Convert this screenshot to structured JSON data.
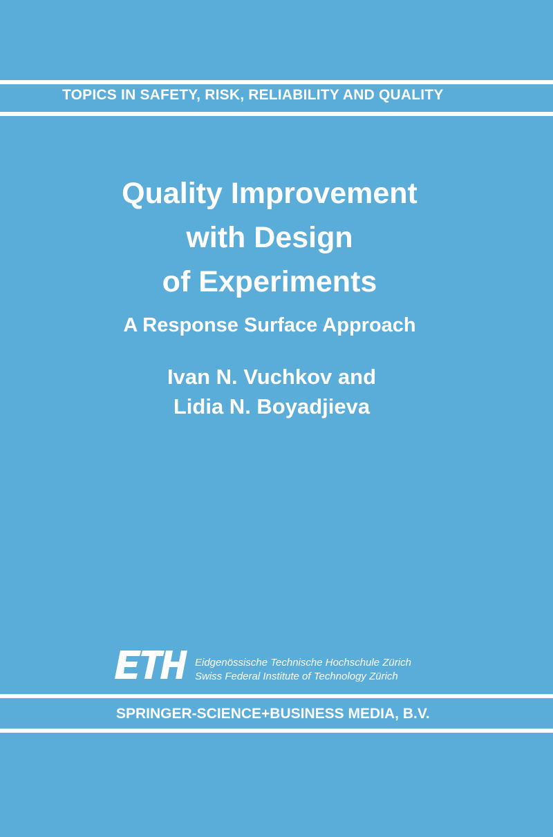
{
  "series": "TOPICS IN SAFETY, RISK, RELIABILITY AND QUALITY",
  "title_lines": [
    "Quality Improvement",
    "with Design",
    "of Experiments"
  ],
  "subtitle": "A Response Surface Approach",
  "author_lines": [
    "Ivan N. Vuchkov and",
    "Lidia N. Boyadjieva"
  ],
  "logo": {
    "text": "ETH",
    "line1": "Eidgenössische Technische Hochschule Zürich",
    "line2": "Swiss Federal Institute of Technology Zürich"
  },
  "publisher": "SPRINGER-SCIENCE+BUSINESS MEDIA, B.V.",
  "colors": {
    "background": "#5aacd9",
    "text": "#ffffff"
  }
}
